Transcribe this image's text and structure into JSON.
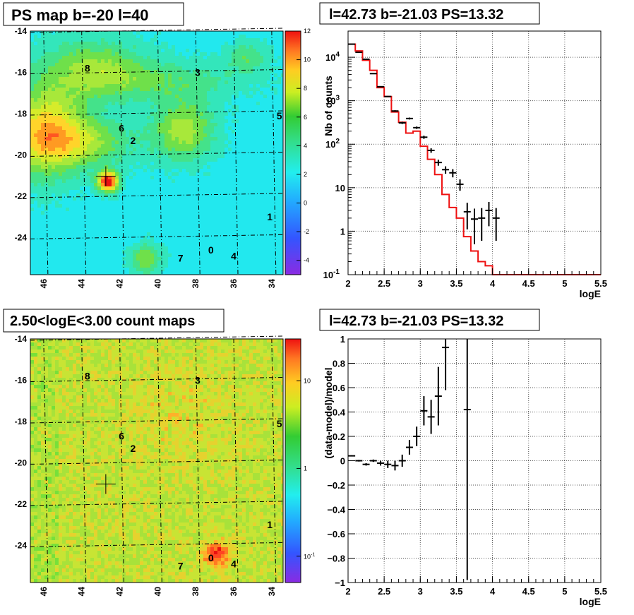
{
  "panels": {
    "tl_title": "PS map b=-20 l=40",
    "tr_title": "l=42.73 b=-21.03 PS=13.32",
    "bl_title": "2.50<logE<3.00 count maps",
    "br_title": "l=42.73 b=-21.03 PS=13.32"
  },
  "maps": {
    "x_ticks": [
      "46",
      "44",
      "42",
      "40",
      "38",
      "36",
      "34"
    ],
    "y_ticks": [
      "-14",
      "-16",
      "-18",
      "-20",
      "-22",
      "-24"
    ],
    "source_labels": [
      "0",
      "1",
      "2",
      "3",
      "4",
      "5",
      "6",
      "7",
      "8"
    ],
    "top_colorbar_ticks": [
      "12",
      "10",
      "8",
      "6",
      "4",
      "2",
      "0",
      "-2",
      "-4"
    ],
    "bottom_colorbar_ticks": [
      "10",
      "1",
      "10-1"
    ]
  },
  "chart_data": [
    {
      "type": "heatmap",
      "title": "PS map b=-20 l=40",
      "xlabel": "",
      "ylabel": "",
      "x_axis": "galactic longitude l (decreasing left to right)",
      "xlim": [
        46.7,
        33.4
      ],
      "ylim": [
        -25.8,
        -14
      ],
      "zlim": [
        -5,
        12
      ],
      "colorbar_ticks": [
        12,
        10,
        8,
        6,
        4,
        2,
        0,
        -2,
        -4
      ],
      "marker": {
        "l": 42.73,
        "b": -21.03
      },
      "sources": [
        {
          "label": "8",
          "l": 43.7,
          "b": -15.8
        },
        {
          "label": "3",
          "l": 37.9,
          "b": -16.0
        },
        {
          "label": "5",
          "l": 33.6,
          "b": -18.1
        },
        {
          "label": "6",
          "l": 41.9,
          "b": -18.7
        },
        {
          "label": "2",
          "l": 41.3,
          "b": -19.3
        },
        {
          "label": "1",
          "l": 34.1,
          "b": -23.0
        },
        {
          "label": "0",
          "l": 37.2,
          "b": -24.6
        },
        {
          "label": "4",
          "l": 36.0,
          "b": -24.9
        },
        {
          "label": "7",
          "l": 38.8,
          "b": -25.0
        }
      ]
    },
    {
      "type": "line",
      "title": "l=42.73 b=-21.03 PS=13.32",
      "xlabel": "logE",
      "ylabel": "Nb of counts",
      "xlim": [
        2,
        5.5
      ],
      "ylim": [
        0.1,
        40000
      ],
      "yscale": "log",
      "x_ticks": [
        2,
        2.5,
        3,
        3.5,
        4,
        4.5,
        5,
        5.5
      ],
      "y_ticks": [
        "10^-1",
        "1",
        "10",
        "10^2",
        "10^3",
        "10^4"
      ],
      "grid": true,
      "series": [
        {
          "kind": "data-points",
          "x": [
            2.05,
            2.15,
            2.25,
            2.35,
            2.45,
            2.55,
            2.65,
            2.75,
            2.85,
            2.95,
            3.05,
            3.15,
            3.25,
            3.35,
            3.45,
            3.55,
            3.65,
            3.75,
            3.85,
            3.95,
            4.05
          ],
          "y": [
            20000,
            13000,
            9000,
            4200,
            2100,
            1250,
            580,
            310,
            390,
            240,
            145,
            72,
            38,
            26,
            22,
            12,
            2.8,
            1.9,
            2.0,
            3.0,
            2.0
          ],
          "yerr": [
            140,
            114,
            95,
            65,
            46,
            35,
            24,
            18,
            20,
            15,
            12,
            8.5,
            6,
            5,
            4.7,
            3.5,
            1.7,
            1.4,
            1.4,
            1.7,
            1.4
          ]
        },
        {
          "kind": "model-histogram",
          "x_edges": [
            2.0,
            2.1,
            2.2,
            2.3,
            2.4,
            2.5,
            2.6,
            2.7,
            2.8,
            2.9,
            3.0,
            3.1,
            3.2,
            3.3,
            3.4,
            3.5,
            3.6,
            3.7,
            3.8,
            3.9,
            4.0,
            4.1,
            5.5
          ],
          "y": [
            20000,
            14000,
            8500,
            5000,
            2000,
            1250,
            550,
            320,
            180,
            200,
            90,
            45,
            20,
            7,
            3.5,
            2.0,
            0.75,
            0.35,
            0.2,
            0.16,
            0.1,
            0.1
          ]
        }
      ]
    },
    {
      "type": "heatmap",
      "title": "2.50<logE<3.00 count maps",
      "xlabel": "",
      "ylabel": "",
      "xlim": [
        46.7,
        33.4
      ],
      "ylim": [
        -25.8,
        -14
      ],
      "zscale": "log",
      "zlim": [
        0.05,
        30
      ],
      "colorbar_ticks": [
        "10",
        "1",
        "10-1"
      ],
      "marker": {
        "l": 42.73,
        "b": -21.03
      }
    },
    {
      "type": "scatter",
      "title": "l=42.73 b=-21.03 PS=13.32",
      "xlabel": "logE",
      "ylabel": "(data-model)/model",
      "xlim": [
        2,
        5.5
      ],
      "ylim": [
        -1,
        1
      ],
      "x_ticks": [
        2,
        2.5,
        3,
        3.5,
        4,
        4.5,
        5,
        5.5
      ],
      "y_ticks": [
        -1,
        -0.8,
        -0.6,
        -0.4,
        -0.2,
        0,
        0.2,
        0.4,
        0.6,
        0.8,
        1
      ],
      "grid": true,
      "series": [
        {
          "kind": "residuals",
          "x": [
            2.05,
            2.15,
            2.25,
            2.35,
            2.45,
            2.55,
            2.65,
            2.75,
            2.85,
            2.95,
            3.05,
            3.15,
            3.25,
            3.35,
            3.65
          ],
          "y": [
            0.04,
            0.0,
            -0.03,
            0.0,
            -0.02,
            -0.03,
            -0.04,
            0.0,
            0.11,
            0.2,
            0.41,
            0.36,
            0.53,
            0.93,
            0.42
          ],
          "yerr": [
            0.005,
            0.007,
            0.01,
            0.01,
            0.02,
            0.03,
            0.04,
            0.05,
            0.06,
            0.08,
            0.12,
            0.14,
            0.24,
            0.35,
            1.4
          ]
        }
      ]
    }
  ]
}
